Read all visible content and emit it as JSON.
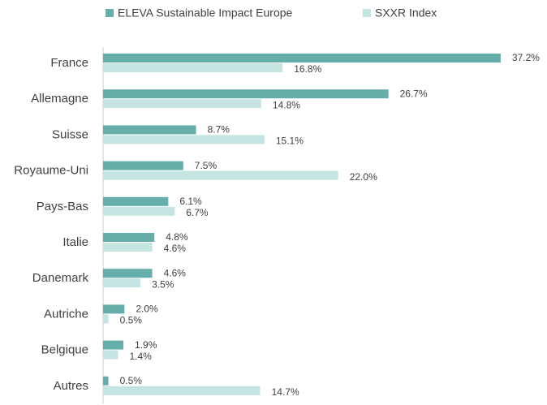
{
  "chart_data": {
    "type": "hbar",
    "categories": [
      "France",
      "Allemagne",
      "Suisse",
      "Royaume-Uni",
      "Pays-Bas",
      "Italie",
      "Danemark",
      "Autriche",
      "Belgique",
      "Autres"
    ],
    "series": [
      {
        "name": "ELEVA Sustainable Impact Europe",
        "color": "#66aeaa",
        "values": [
          37.2,
          26.7,
          8.7,
          7.5,
          6.1,
          4.8,
          4.6,
          2.0,
          1.9,
          0.5
        ],
        "value_labels": [
          "37.2%",
          "26.7%",
          "8.7%",
          "7.5%",
          "6.1%",
          "4.8%",
          "4.6%",
          "2.0%",
          "1.9%",
          "0.5%"
        ]
      },
      {
        "name": "SXXR Index",
        "color": "#c5e4e2",
        "values": [
          16.8,
          14.8,
          15.1,
          22.0,
          6.7,
          4.6,
          3.5,
          0.5,
          1.4,
          14.7
        ],
        "value_labels": [
          "16.8%",
          "14.8%",
          "15.1%",
          "22.0%",
          "6.7%",
          "4.6%",
          "3.5%",
          "0.5%",
          "1.4%",
          "14.7%"
        ]
      }
    ],
    "legend": "top"
  }
}
